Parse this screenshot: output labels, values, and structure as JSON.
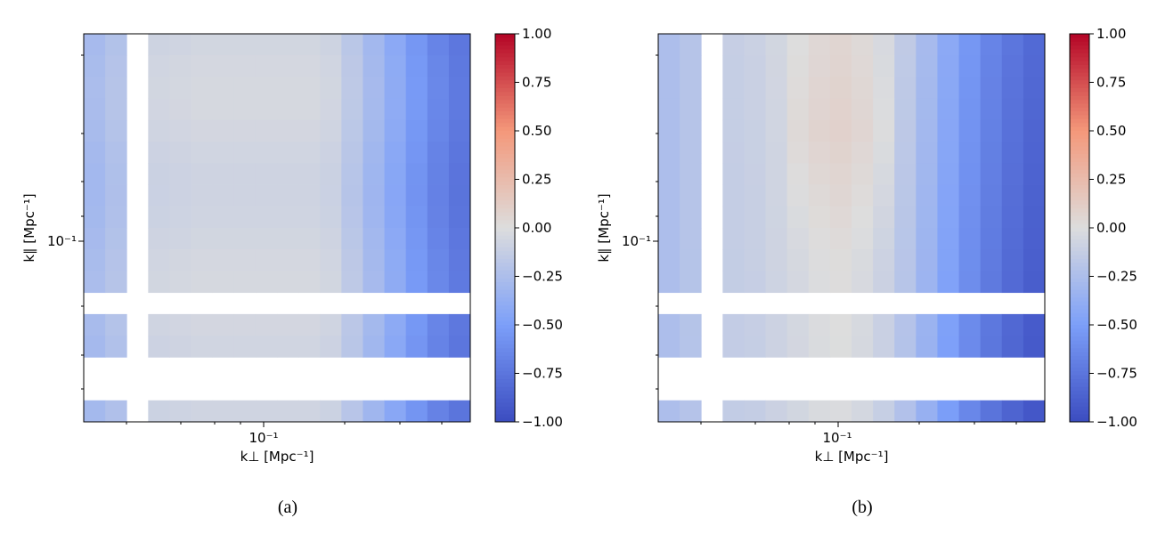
{
  "chart_data": [
    {
      "type": "heatmap",
      "panel_label": "(a)",
      "xlabel": "k⊥ [Mpc⁻¹]",
      "ylabel": "k∥ [Mpc⁻¹]",
      "x_scale": "log",
      "y_scale": "log",
      "x_major_tick_label": "10⁻¹",
      "y_major_tick_label": "10⁻¹",
      "colorbar": {
        "colormap": "coolwarm",
        "range": [
          -1.0,
          1.0
        ],
        "tick_labels": [
          "1.00",
          "0.75",
          "0.50",
          "0.25",
          "0.00",
          "−0.25",
          "−0.50",
          "−0.75",
          "−1.00"
        ]
      },
      "grid": {
        "columns": 18,
        "rows": 18,
        "masked_columns": [
          2
        ],
        "masked_rows": [
          12,
          15,
          16
        ]
      },
      "column_values": [
        -0.28,
        -0.22,
        null,
        -0.08,
        -0.07,
        -0.06,
        -0.06,
        -0.06,
        -0.06,
        -0.06,
        -0.06,
        -0.08,
        -0.18,
        -0.3,
        -0.42,
        -0.55,
        -0.66,
        -0.74
      ]
    },
    {
      "type": "heatmap",
      "panel_label": "(b)",
      "xlabel": "k⊥ [Mpc⁻¹]",
      "ylabel": "k∥ [Mpc⁻¹]",
      "x_scale": "log",
      "y_scale": "log",
      "x_major_tick_label": "10⁻¹",
      "y_major_tick_label": "10⁻¹",
      "colorbar": {
        "colormap": "coolwarm",
        "range": [
          -1.0,
          1.0
        ],
        "tick_labels": [
          "1.00",
          "0.75",
          "0.50",
          "0.25",
          "0.00",
          "−0.25",
          "−0.50",
          "−0.75",
          "−1.00"
        ]
      },
      "grid": {
        "columns": 18,
        "rows": 18,
        "masked_columns": [
          2
        ],
        "masked_rows": [
          12,
          15,
          16
        ]
      },
      "column_values": [
        -0.25,
        -0.2,
        null,
        -0.12,
        -0.1,
        -0.06,
        -0.02,
        0.02,
        0.04,
        0.01,
        -0.05,
        -0.15,
        -0.28,
        -0.42,
        -0.55,
        -0.66,
        -0.75,
        -0.82
      ]
    }
  ]
}
